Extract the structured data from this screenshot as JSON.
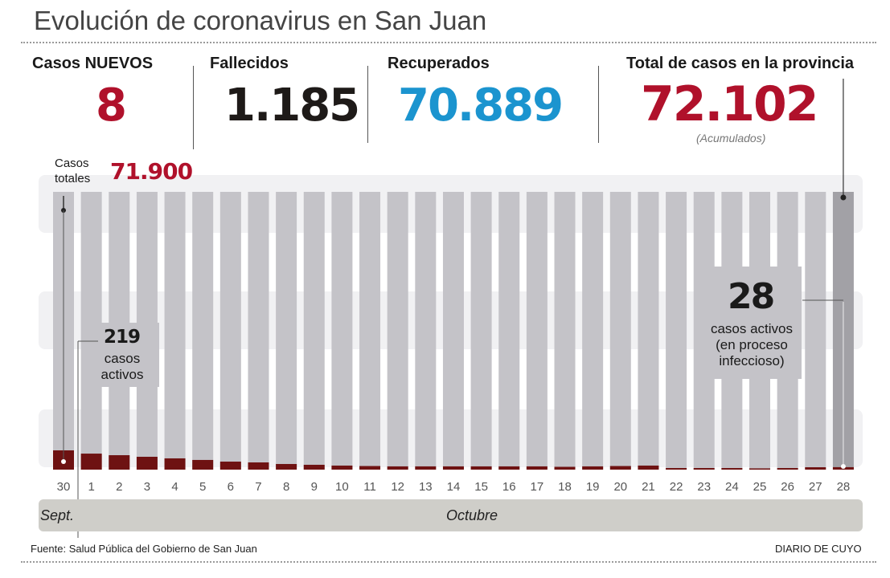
{
  "header": {
    "title": "Evolución de coronavirus en San Juan"
  },
  "stats": {
    "new_cases": {
      "label": "Casos NUEVOS",
      "value": "8",
      "color": "#b0112b"
    },
    "deaths": {
      "label": "Fallecidos",
      "value": "1.185",
      "color": "#1e1a18"
    },
    "recovered": {
      "label": "Recuperados",
      "value": "70.889",
      "color": "#1b94cf"
    },
    "total": {
      "label": "Total de casos en la provincia",
      "value": "72.102",
      "note": "(Acumulados)",
      "color": "#b0112b"
    }
  },
  "chart_data": {
    "type": "bar",
    "title": "Evolución de coronavirus en San Juan",
    "xlabel": "",
    "ylabel": "",
    "categories": [
      "30",
      "1",
      "2",
      "3",
      "4",
      "5",
      "6",
      "7",
      "8",
      "9",
      "10",
      "11",
      "12",
      "13",
      "14",
      "15",
      "16",
      "17",
      "18",
      "19",
      "20",
      "21",
      "22",
      "23",
      "24",
      "25",
      "26",
      "27",
      "28"
    ],
    "month_groups": [
      {
        "label": "Sept.",
        "days": [
          "30"
        ]
      },
      {
        "label": "Octubre",
        "days": [
          "1",
          "2",
          "3",
          "4",
          "5",
          "6",
          "7",
          "8",
          "9",
          "10",
          "11",
          "12",
          "13",
          "14",
          "15",
          "16",
          "17",
          "18",
          "19",
          "20",
          "21",
          "22",
          "23",
          "24",
          "25",
          "26",
          "27",
          "28"
        ]
      }
    ],
    "series": [
      {
        "name": "Casos activos",
        "color": "#6e1212",
        "values": [
          219,
          182,
          164,
          146,
          128,
          110,
          91,
          82,
          64,
          55,
          46,
          41,
          37,
          37,
          37,
          37,
          37,
          37,
          32,
          37,
          41,
          46,
          18,
          18,
          18,
          14,
          18,
          27,
          28
        ]
      },
      {
        "name": "Casos totales",
        "color": "#c4c3c8",
        "values": [
          71900,
          null,
          null,
          null,
          null,
          null,
          null,
          null,
          null,
          null,
          null,
          null,
          null,
          null,
          null,
          null,
          null,
          null,
          null,
          null,
          null,
          null,
          null,
          null,
          null,
          null,
          null,
          null,
          72102
        ]
      }
    ],
    "annotations": {
      "start_total": {
        "label": "Casos totales",
        "value": "71.900",
        "day": "30"
      },
      "start_active": {
        "value": "219",
        "label": "casos activos",
        "day": "30"
      },
      "end_active": {
        "value": "28",
        "label_lines": [
          "casos activos",
          "(en proceso",
          "infeccioso)"
        ],
        "day": "28"
      }
    },
    "grid": true
  },
  "footer": {
    "source": "Fuente: Salud Pública del Gobierno de San Juan",
    "brand": "DIARIO DE CUYO"
  }
}
